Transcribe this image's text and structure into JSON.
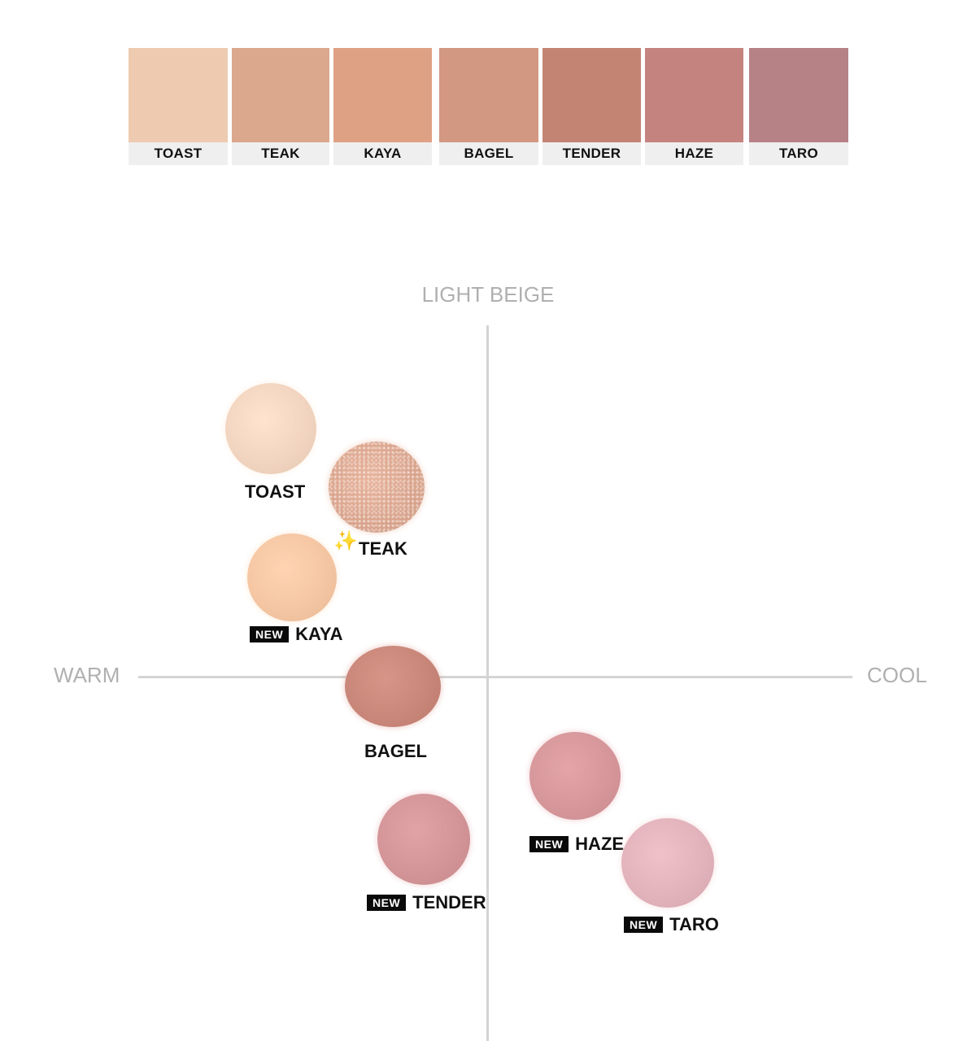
{
  "swatches": [
    {
      "name": "TOAST",
      "color": "#eecbb0"
    },
    {
      "name": "TEAK",
      "color": "#dba78d"
    },
    {
      "name": "KAYA",
      "color": "#dfa184"
    },
    {
      "name": "BAGEL",
      "color": "#d29881"
    },
    {
      "name": "TENDER",
      "color": "#c48473"
    },
    {
      "name": "HAZE",
      "color": "#c4837e"
    },
    {
      "name": "TARO",
      "color": "#b78286"
    }
  ],
  "axes": {
    "top": "LIGHT BEIGE",
    "left": "WARM",
    "right": "COOL"
  },
  "blobs": [
    {
      "name": "TOAST",
      "new": false,
      "sparkle": false,
      "color": "#f2d5c0",
      "shimmer": false
    },
    {
      "name": "TEAK",
      "new": false,
      "sparkle": true,
      "color": "#d9a48d",
      "shimmer": true
    },
    {
      "name": "KAYA",
      "new": true,
      "sparkle": false,
      "color": "#f5c6a3",
      "shimmer": false
    },
    {
      "name": "BAGEL",
      "new": false,
      "sparkle": false,
      "color": "#c9877a",
      "shimmer": false
    },
    {
      "name": "TENDER",
      "new": true,
      "sparkle": false,
      "color": "#d39598",
      "shimmer": false
    },
    {
      "name": "HAZE",
      "new": true,
      "sparkle": false,
      "color": "#d6979b",
      "shimmer": false
    },
    {
      "name": "TARO",
      "new": true,
      "sparkle": false,
      "color": "#e2b3bb",
      "shimmer": false
    }
  ],
  "badge_text": "NEW"
}
